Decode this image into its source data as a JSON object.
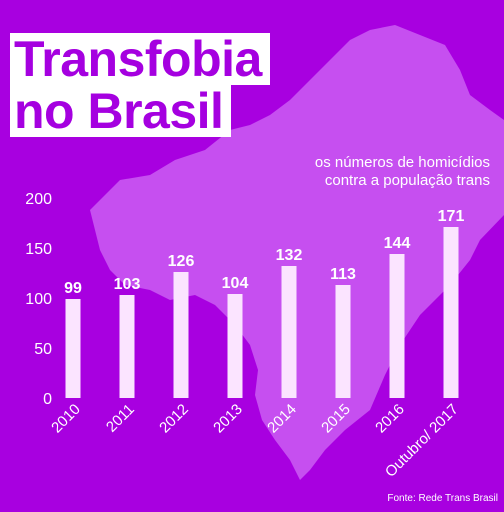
{
  "header": {
    "title_line1": "Transfobia",
    "title_line2": "no Brasil",
    "subtitle_line1": "os números de homicídios",
    "subtitle_line2": "contra a população trans"
  },
  "source": "Fonte: Rede Trans Brasil",
  "colors": {
    "background": "#a800e0",
    "map": "#c64ff0",
    "bar": "#fbe4ff",
    "text": "#ffffff",
    "title_text": "#a500e0"
  },
  "chart_data": {
    "type": "bar",
    "categories": [
      "2010",
      "2011",
      "2012",
      "2013",
      "2014",
      "2015",
      "2016",
      "Outubro/ 2017"
    ],
    "values": [
      99,
      103,
      126,
      104,
      132,
      113,
      144,
      171
    ],
    "data_labels": [
      "99",
      "103",
      "126",
      "104",
      "132",
      "113",
      "144",
      "171"
    ],
    "ylim": [
      0,
      200
    ],
    "yticks": [
      0,
      50,
      100,
      150,
      200
    ],
    "grid": false,
    "legend": "none"
  }
}
